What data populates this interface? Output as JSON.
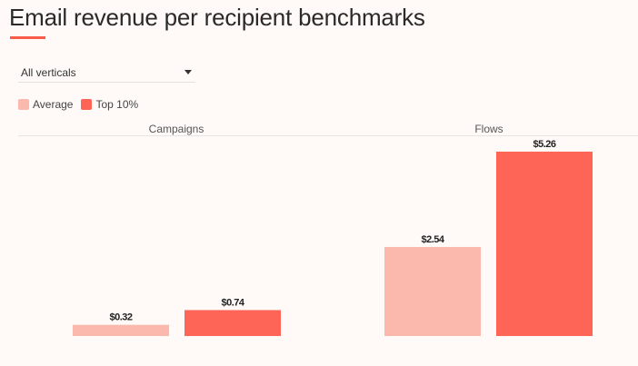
{
  "title": "Email revenue per recipient benchmarks",
  "filter": {
    "selected": "All verticals",
    "icon": "caret-down-icon"
  },
  "colors": {
    "accent": "#fa5a48",
    "average": "#fbb8ad",
    "top10": "#fe6556",
    "background": "#fffaf7"
  },
  "chart_data": {
    "type": "bar",
    "categories": [
      "Campaigns",
      "Flows"
    ],
    "series": [
      {
        "name": "Average",
        "values": [
          0.32,
          2.54
        ],
        "labels": [
          "$0.32",
          "$2.54"
        ]
      },
      {
        "name": "Top 10%",
        "values": [
          0.74,
          5.26
        ],
        "labels": [
          "$0.74",
          "$5.26"
        ]
      }
    ],
    "ylabel": "",
    "legend": "top-left",
    "grid": false
  }
}
